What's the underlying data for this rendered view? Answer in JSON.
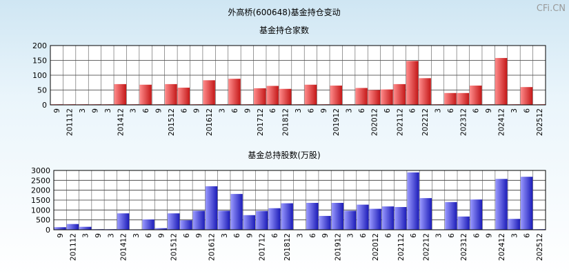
{
  "page": {
    "title": "外高桥(600648)基金持仓变动",
    "watermark": "CFi.CN"
  },
  "chart_data": [
    {
      "type": "bar",
      "title": "基金持仓家数",
      "ylim": [
        0,
        200
      ],
      "yticks": [
        0,
        50,
        100,
        150,
        200
      ],
      "grid": true,
      "color": "#e03a3a",
      "categories": [
        "9",
        "201112",
        "3",
        "9",
        "3",
        "201412",
        "3",
        "6",
        "9",
        "201512",
        "6",
        "9",
        "201612",
        "3",
        "6",
        "9",
        "201712",
        "6",
        "201812",
        "3",
        "6",
        "9",
        "201912",
        "3",
        "6",
        "202012",
        "6",
        "202112",
        "6",
        "202212",
        "3",
        "6",
        "202312",
        "6",
        "9",
        "202412",
        "3",
        "6",
        "202512"
      ],
      "values": [
        2,
        2,
        2,
        2,
        2,
        70,
        2,
        68,
        2,
        70,
        58,
        2,
        83,
        2,
        88,
        2,
        56,
        64,
        54,
        2,
        68,
        2,
        65,
        2,
        57,
        50,
        52,
        70,
        148,
        90,
        2,
        40,
        40,
        65,
        2,
        158,
        2,
        60,
        2
      ]
    },
    {
      "type": "bar",
      "title": "基金总持股数(万股)",
      "ylim": [
        0,
        3000
      ],
      "yticks": [
        0,
        500,
        1000,
        1500,
        2000,
        2500,
        3000
      ],
      "grid": true,
      "color": "#3a3ad6",
      "categories": [
        "9",
        "201112",
        "3",
        "9",
        "3",
        "201412",
        "3",
        "6",
        "9",
        "201512",
        "6",
        "9",
        "201612",
        "3",
        "6",
        "9",
        "201712",
        "6",
        "201812",
        "3",
        "6",
        "9",
        "201912",
        "3",
        "6",
        "202012",
        "6",
        "202112",
        "6",
        "202212",
        "3",
        "6",
        "202312",
        "6",
        "9",
        "202412",
        "3",
        "6",
        "202512"
      ],
      "values": [
        130,
        290,
        150,
        30,
        30,
        830,
        20,
        520,
        80,
        830,
        480,
        960,
        2200,
        960,
        1810,
        740,
        950,
        1090,
        1340,
        20,
        1360,
        700,
        1360,
        960,
        1270,
        1060,
        1180,
        1150,
        2900,
        1600,
        20,
        1400,
        670,
        1530,
        20,
        2570,
        550,
        2680,
        30
      ]
    }
  ]
}
